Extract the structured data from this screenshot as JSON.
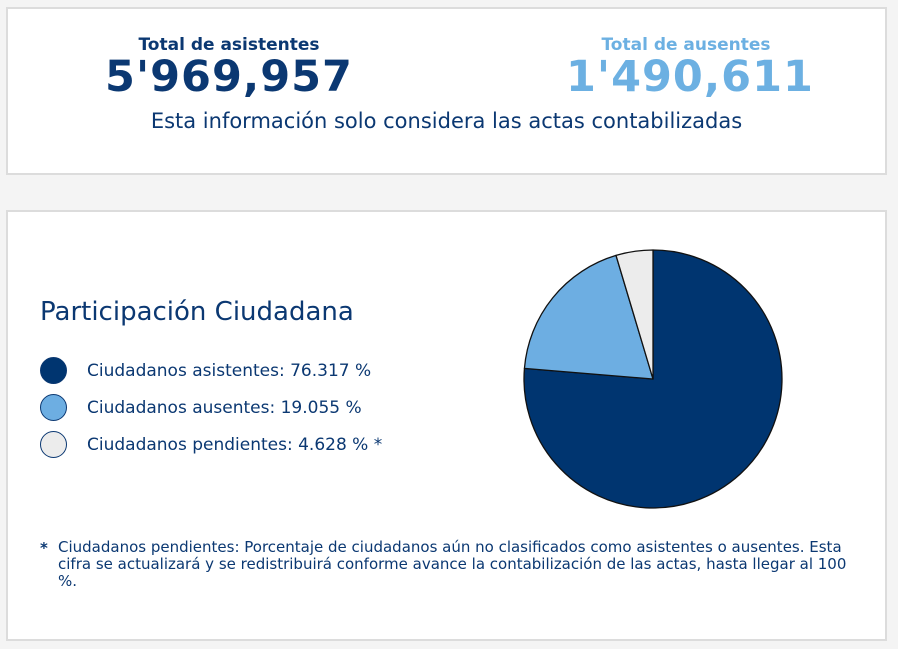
{
  "totals": {
    "attendees_label": "Total de asistentes",
    "attendees_value": "5'969,957",
    "absentees_label": "Total de ausentes",
    "absentees_value": "1'490,611",
    "note": "Esta información solo considera las actas contabilizadas"
  },
  "colors": {
    "attendees": "#003570",
    "absentees": "#6daee2",
    "pending": "#ececec",
    "text": "#0b3872"
  },
  "chart_data": {
    "type": "pie",
    "title": "Participación Ciudadana",
    "slices": [
      {
        "label": "Ciudadanos asistentes: 76.317 %",
        "value": 76.317,
        "color": "#003570"
      },
      {
        "label": "Ciudadanos ausentes: 19.055 %",
        "value": 19.055,
        "color": "#6daee2"
      },
      {
        "label": "Ciudadanos pendientes: 4.628 % *",
        "value": 4.628,
        "color": "#ececec"
      }
    ],
    "legend_position": "left"
  },
  "footnote": {
    "marker": "*",
    "text": "Ciudadanos pendientes: Porcentaje de ciudadanos aún no clasificados como asistentes o ausentes. Esta cifra se actualizará y se redistribuirá conforme avance la contabilización de las actas, hasta llegar al 100 %."
  }
}
